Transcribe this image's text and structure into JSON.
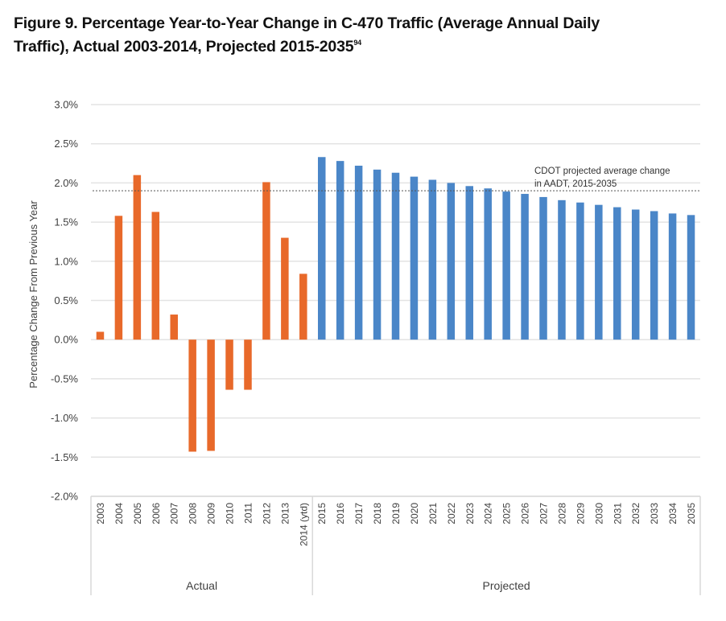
{
  "figure": {
    "title_line1": "Figure 9. Percentage Year-to-Year Change in C-470 Traffic (Average Annual Daily",
    "title_line2": "Traffic), Actual 2003-2014, Projected 2015-2035",
    "title_footnote": "94"
  },
  "chart_data": {
    "type": "bar",
    "title": "Figure 9. Percentage Year-to-Year Change in C-470 Traffic (Average Annual Daily Traffic), Actual 2003-2014, Projected 2015-2035",
    "xlabel": "",
    "ylabel": "Percentage Change From Previous Year",
    "ylim": [
      -2.0,
      3.0
    ],
    "yticks": [
      -2.0,
      -1.5,
      -1.0,
      -0.5,
      0.0,
      0.5,
      1.0,
      1.5,
      2.0,
      2.5,
      3.0
    ],
    "ytick_labels": [
      "-2.0%",
      "-1.5%",
      "-1.0%",
      "-0.5%",
      "0.0%",
      "0.5%",
      "1.0%",
      "1.5%",
      "2.0%",
      "2.5%",
      "3.0%"
    ],
    "grid": true,
    "legend": "none",
    "groups": [
      {
        "name": "Actual",
        "color": "#E8692A",
        "categories": [
          "2003",
          "2004",
          "2005",
          "2006",
          "2007",
          "2008",
          "2009",
          "2010",
          "2011",
          "2012",
          "2013",
          "2014 (ytd)"
        ],
        "values": [
          0.1,
          1.58,
          2.1,
          1.63,
          0.32,
          -1.43,
          -1.42,
          -0.64,
          -0.64,
          2.01,
          1.3,
          0.84
        ]
      },
      {
        "name": "Projected",
        "color": "#4A86C8",
        "categories": [
          "2015",
          "2016",
          "2017",
          "2018",
          "2019",
          "2020",
          "2021",
          "2022",
          "2023",
          "2024",
          "2025",
          "2026",
          "2027",
          "2028",
          "2029",
          "2030",
          "2031",
          "2032",
          "2033",
          "2034",
          "2035"
        ],
        "values": [
          2.33,
          2.28,
          2.22,
          2.17,
          2.13,
          2.08,
          2.04,
          2.0,
          1.96,
          1.93,
          1.89,
          1.86,
          1.82,
          1.78,
          1.75,
          1.72,
          1.69,
          1.66,
          1.64,
          1.61,
          1.59
        ]
      }
    ],
    "reference_line": {
      "value": 1.9,
      "style": "dotted",
      "label_line1": "CDOT projected average change",
      "label_line2": "in AADT, 2015-2035"
    }
  }
}
